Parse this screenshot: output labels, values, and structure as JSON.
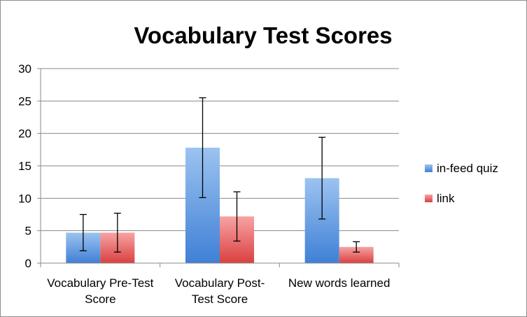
{
  "chart_data": {
    "type": "bar",
    "title": "Vocabulary Test Scores",
    "xlabel": "",
    "ylabel": "",
    "ylim": [
      0,
      30
    ],
    "yticks": [
      0,
      5,
      10,
      15,
      20,
      25,
      30
    ],
    "grid": true,
    "legend_position": "right",
    "categories": [
      [
        "Vocabulary Pre-Test",
        "Score"
      ],
      [
        "Vocabulary Post-",
        "Test Score"
      ],
      [
        "New words learned"
      ]
    ],
    "series": [
      {
        "name": "in-feed quiz",
        "color_top": "#9cc3f0",
        "color_bottom": "#3f80d6",
        "values": [
          4.7,
          17.8,
          13.1
        ],
        "error": [
          2.8,
          7.7,
          6.3
        ]
      },
      {
        "name": "link",
        "color_top": "#f7a3a3",
        "color_bottom": "#d9403f",
        "values": [
          4.7,
          7.2,
          2.5
        ],
        "error": [
          3.0,
          3.8,
          0.8
        ]
      }
    ]
  }
}
